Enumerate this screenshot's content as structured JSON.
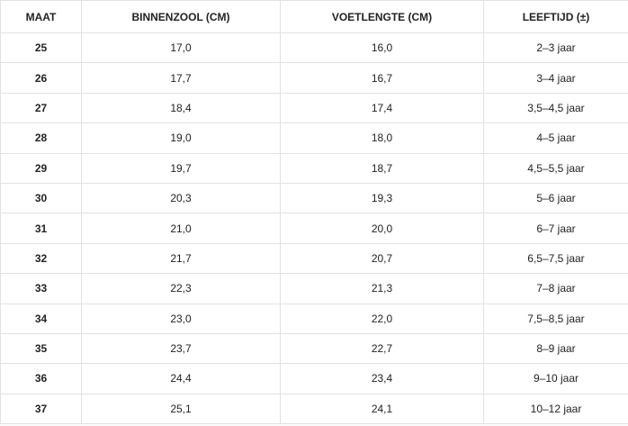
{
  "table": {
    "header": [
      "MAAT",
      "BINNENZOOL (CM)",
      "VOETLENGTE (CM)",
      "LEEFTIJD (±)"
    ],
    "rows": [
      [
        "25",
        "17,0",
        "16,0",
        "2–3 jaar"
      ],
      [
        "26",
        "17,7",
        "16,7",
        "3–4 jaar"
      ],
      [
        "27",
        "18,4",
        "17,4",
        "3,5–4,5 jaar"
      ],
      [
        "28",
        "19,0",
        "18,0",
        "4–5 jaar"
      ],
      [
        "29",
        "19,7",
        "18,7",
        "4,5–5,5 jaar"
      ],
      [
        "30",
        "20,3",
        "19,3",
        "5–6 jaar"
      ],
      [
        "31",
        "21,0",
        "20,0",
        "6–7 jaar"
      ],
      [
        "32",
        "21,7",
        "20,7",
        "6,5–7,5 jaar"
      ],
      [
        "33",
        "22,3",
        "21,3",
        "7–8 jaar"
      ],
      [
        "34",
        "23,0",
        "22,0",
        "7,5–8,5 jaar"
      ],
      [
        "35",
        "23,7",
        "22,7",
        "8–9 jaar"
      ],
      [
        "36",
        "24,4",
        "23,4",
        "9–10 jaar"
      ],
      [
        "37",
        "25,1",
        "24,1",
        "10–12 jaar"
      ]
    ]
  }
}
